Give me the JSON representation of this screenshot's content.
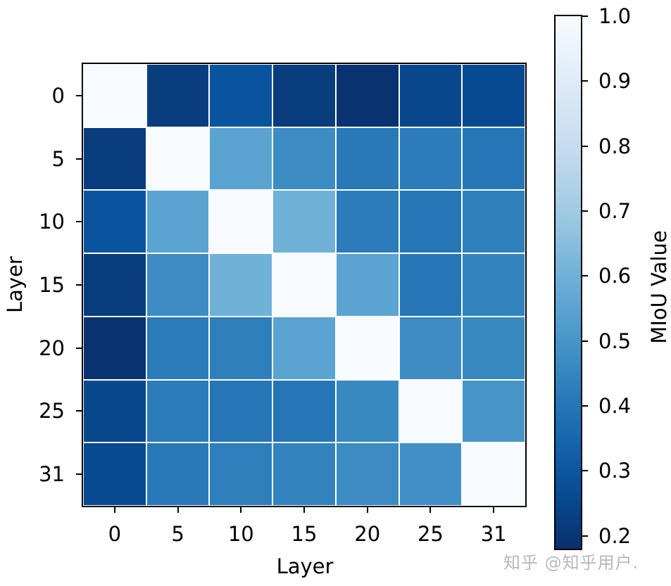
{
  "chart_data": {
    "type": "heatmap",
    "title": "",
    "xlabel": "Layer",
    "ylabel": "Layer",
    "x_ticks": [
      "0",
      "5",
      "10",
      "15",
      "20",
      "25",
      "31"
    ],
    "y_ticks": [
      "0",
      "5",
      "10",
      "15",
      "20",
      "25",
      "31"
    ],
    "colormap": "Blues",
    "colorbar": {
      "label": "MIoU Value",
      "vmin": 0.18,
      "vmax": 1.0,
      "ticks": [
        "1.0",
        "0.9",
        "0.8",
        "0.7",
        "0.6",
        "0.5",
        "0.4",
        "0.3",
        "0.2"
      ]
    },
    "matrix": [
      [
        1.0,
        0.22,
        0.29,
        0.22,
        0.19,
        0.25,
        0.26
      ],
      [
        0.22,
        1.0,
        0.55,
        0.47,
        0.41,
        0.42,
        0.4
      ],
      [
        0.29,
        0.55,
        1.0,
        0.6,
        0.42,
        0.4,
        0.43
      ],
      [
        0.22,
        0.47,
        0.6,
        1.0,
        0.55,
        0.4,
        0.44
      ],
      [
        0.19,
        0.42,
        0.43,
        0.55,
        1.0,
        0.47,
        0.46
      ],
      [
        0.25,
        0.42,
        0.4,
        0.4,
        0.46,
        1.0,
        0.5
      ],
      [
        0.26,
        0.41,
        0.43,
        0.44,
        0.47,
        0.48,
        1.0
      ]
    ],
    "grid": true,
    "legend_position": "right (colorbar)"
  },
  "watermark": "知乎 @知乎用户."
}
